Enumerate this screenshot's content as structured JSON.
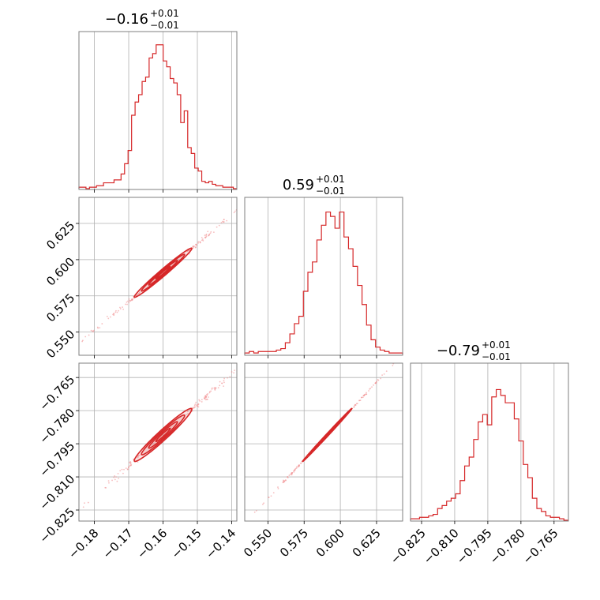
{
  "figure": {
    "type": "corner-plot",
    "color": "#d62728"
  },
  "chart_data": {
    "type": "corner",
    "grid": true,
    "parameters": [
      {
        "index": 0,
        "title_value": "−0.16",
        "title_sup": "+0.01",
        "title_sub": "−0.01",
        "range": [
          -0.1845,
          -0.1385
        ],
        "ticks": [
          -0.18,
          -0.17,
          -0.16,
          -0.15,
          -0.14
        ],
        "tick_labels": [
          "−0.18",
          "−0.17",
          "−0.16",
          "−0.15",
          "−0.14"
        ],
        "hist": [
          0.01,
          0.01,
          0.0,
          0.01,
          0.01,
          0.02,
          0.02,
          0.04,
          0.04,
          0.04,
          0.06,
          0.06,
          0.1,
          0.17,
          0.26,
          0.5,
          0.59,
          0.64,
          0.73,
          0.76,
          0.89,
          0.92,
          0.98,
          0.98,
          0.87,
          0.83,
          0.75,
          0.72,
          0.64,
          0.45,
          0.53,
          0.28,
          0.24,
          0.14,
          0.12,
          0.05,
          0.04,
          0.05,
          0.03,
          0.02,
          0.02,
          0.01,
          0.01,
          0.01,
          0.0
        ]
      },
      {
        "index": 1,
        "title_value": "0.59",
        "title_sup": "+0.01",
        "title_sub": "−0.01",
        "range": [
          0.534,
          0.643
        ],
        "ticks": [
          0.55,
          0.575,
          0.6,
          0.625
        ],
        "tick_labels": [
          "0.550",
          "0.575",
          "0.600",
          "0.625"
        ],
        "hist": [
          0.01,
          0.02,
          0.01,
          0.02,
          0.02,
          0.02,
          0.02,
          0.03,
          0.04,
          0.08,
          0.14,
          0.21,
          0.26,
          0.43,
          0.56,
          0.63,
          0.78,
          0.88,
          0.97,
          0.94,
          0.86,
          0.97,
          0.8,
          0.72,
          0.6,
          0.47,
          0.34,
          0.2,
          0.1,
          0.05,
          0.03,
          0.02,
          0.01,
          0.01,
          0.01
        ]
      },
      {
        "index": 2,
        "title_value": "−0.79",
        "title_sup": "+0.01",
        "title_sub": "−0.01",
        "range": [
          -0.83,
          -0.7585
        ],
        "ticks": [
          -0.825,
          -0.81,
          -0.795,
          -0.78,
          -0.765
        ],
        "tick_labels": [
          "−0.825",
          "−0.810",
          "−0.795",
          "−0.780",
          "−0.765"
        ],
        "hist": [
          0.01,
          0.01,
          0.02,
          0.02,
          0.03,
          0.04,
          0.08,
          0.1,
          0.13,
          0.15,
          0.18,
          0.27,
          0.37,
          0.43,
          0.55,
          0.67,
          0.72,
          0.65,
          0.84,
          0.89,
          0.85,
          0.8,
          0.8,
          0.69,
          0.54,
          0.38,
          0.29,
          0.15,
          0.08,
          0.06,
          0.03,
          0.02,
          0.02,
          0.01,
          0.0
        ]
      }
    ],
    "pairs": [
      {
        "x": 0,
        "y": 1,
        "mean": [
          -0.16,
          0.591
        ],
        "std": [
          0.0042,
          0.0085
        ],
        "corr": 0.985
      },
      {
        "x": 0,
        "y": 2,
        "mean": [
          -0.16,
          -0.791
        ],
        "std": [
          0.0042,
          0.006
        ],
        "corr": 0.97
      },
      {
        "x": 1,
        "y": 2,
        "mean": [
          0.591,
          -0.791
        ],
        "std": [
          0.0085,
          0.006
        ],
        "corr": 0.998
      }
    ],
    "contour_levels_sigma": [
      0.5,
      1.0,
      1.5,
      2.0
    ]
  }
}
